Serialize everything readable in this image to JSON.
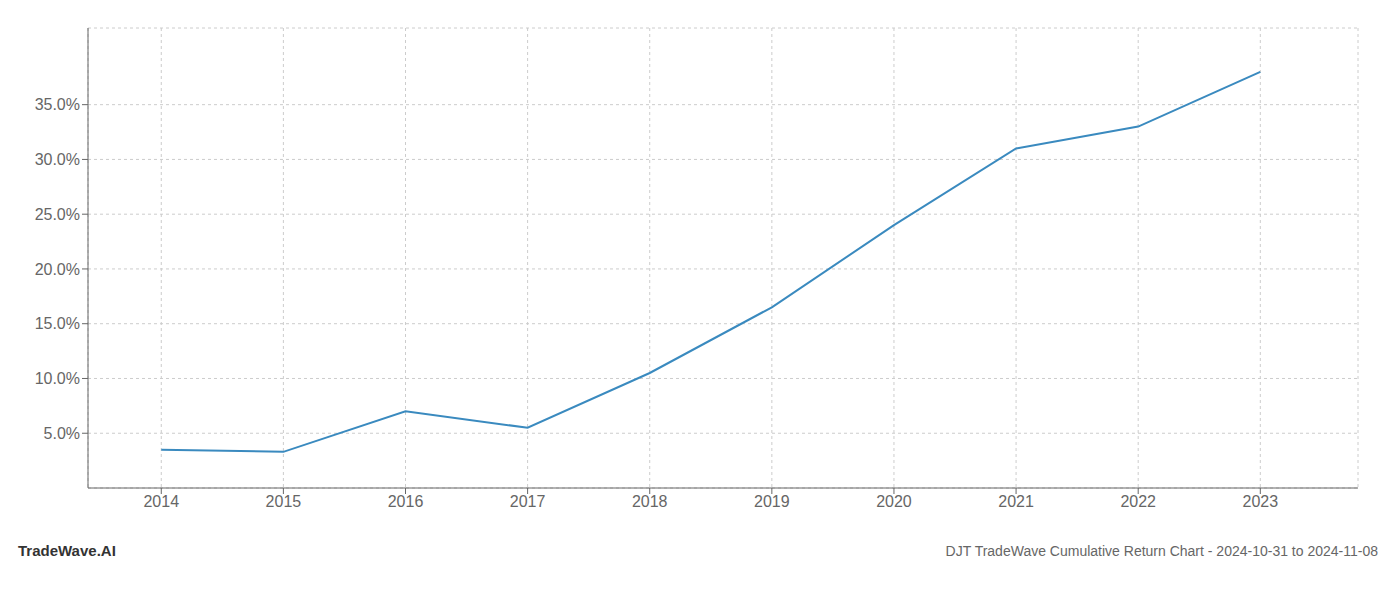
{
  "chart_data": {
    "type": "line",
    "title": "DJT TradeWave Cumulative Return Chart - 2024-10-31 to 2024-11-08",
    "annotations": [
      "TradeWave.AI"
    ],
    "x": [
      2014,
      2015,
      2016,
      2017,
      2018,
      2019,
      2020,
      2021,
      2022,
      2023
    ],
    "values": [
      3.5,
      3.3,
      7.0,
      5.5,
      10.5,
      16.5,
      24.0,
      31.0,
      33.0,
      38.0
    ],
    "color": "#3a8abf",
    "xlim": [
      2013.4,
      2023.8
    ],
    "ylim": [
      0,
      42
    ],
    "xticks": [
      2014,
      2015,
      2016,
      2017,
      2018,
      2019,
      2020,
      2021,
      2022,
      2023
    ],
    "yticks": [
      {
        "value": 5.0,
        "label": "5.0%"
      },
      {
        "value": 10.0,
        "label": "10.0%"
      },
      {
        "value": 15.0,
        "label": "15.0%"
      },
      {
        "value": 20.0,
        "label": "20.0%"
      },
      {
        "value": 25.0,
        "label": "25.0%"
      },
      {
        "value": 30.0,
        "label": "30.0%"
      },
      {
        "value": 35.0,
        "label": "35.0%"
      }
    ],
    "grid": true
  }
}
